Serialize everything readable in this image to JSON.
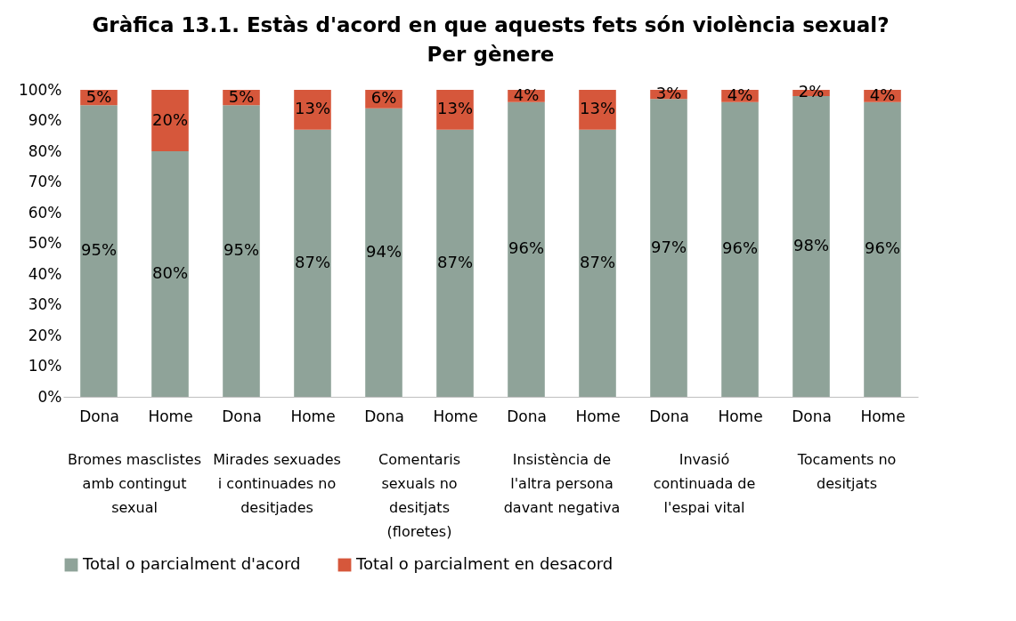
{
  "chart_data": {
    "type": "bar",
    "stacked": true,
    "title": "Gràfica 13.1. Estàs d'acord en que aquests fets són violència sexual? Per gènere",
    "categories": [
      "Dona",
      "Home",
      "Dona",
      "Home",
      "Dona",
      "Home",
      "Dona",
      "Home",
      "Dona",
      "Home",
      "Dona",
      "Home"
    ],
    "annotations": [
      "Bromes masclistes amb contingut sexual",
      "Mirades sexuades i continuades no desitjades",
      "Comentaris sexuals no desitjats (floretes)",
      "Insistència de l'altra persona davant negativa",
      "Invasió continuada de l'espai vital",
      "Tocaments no desitjats"
    ],
    "series": [
      {
        "name": "Total o parcialment d'acord",
        "color": "#8fa399",
        "values": [
          95,
          80,
          95,
          87,
          94,
          87,
          96,
          87,
          97,
          96,
          98,
          96
        ],
        "value_labels": [
          "95%",
          "80%",
          "95%",
          "87%",
          "94%",
          "87%",
          "96%",
          "87%",
          "97%",
          "96%",
          "98%",
          "96%"
        ]
      },
      {
        "name": "Total o parcialment en desacord",
        "color": "#d6573b",
        "values": [
          5,
          20,
          5,
          13,
          6,
          13,
          4,
          13,
          3,
          4,
          2,
          4
        ],
        "value_labels": [
          "5%",
          "20%",
          "5%",
          "13%",
          "6%",
          "13%",
          "4%",
          "13%",
          "3%",
          "4%",
          "2%",
          "4%"
        ]
      }
    ],
    "ylim": [
      0,
      100
    ],
    "yticks": [
      {
        "value": 0,
        "label": "0%"
      },
      {
        "value": 10,
        "label": "10%"
      },
      {
        "value": 20,
        "label": "20%"
      },
      {
        "value": 30,
        "label": "30%"
      },
      {
        "value": 40,
        "label": "40%"
      },
      {
        "value": 50,
        "label": "50%"
      },
      {
        "value": 60,
        "label": "60%"
      },
      {
        "value": 70,
        "label": "70%"
      },
      {
        "value": 80,
        "label": "80%"
      },
      {
        "value": 90,
        "label": "90%"
      },
      {
        "value": 100,
        "label": "100%"
      }
    ],
    "legend": "bottom"
  }
}
